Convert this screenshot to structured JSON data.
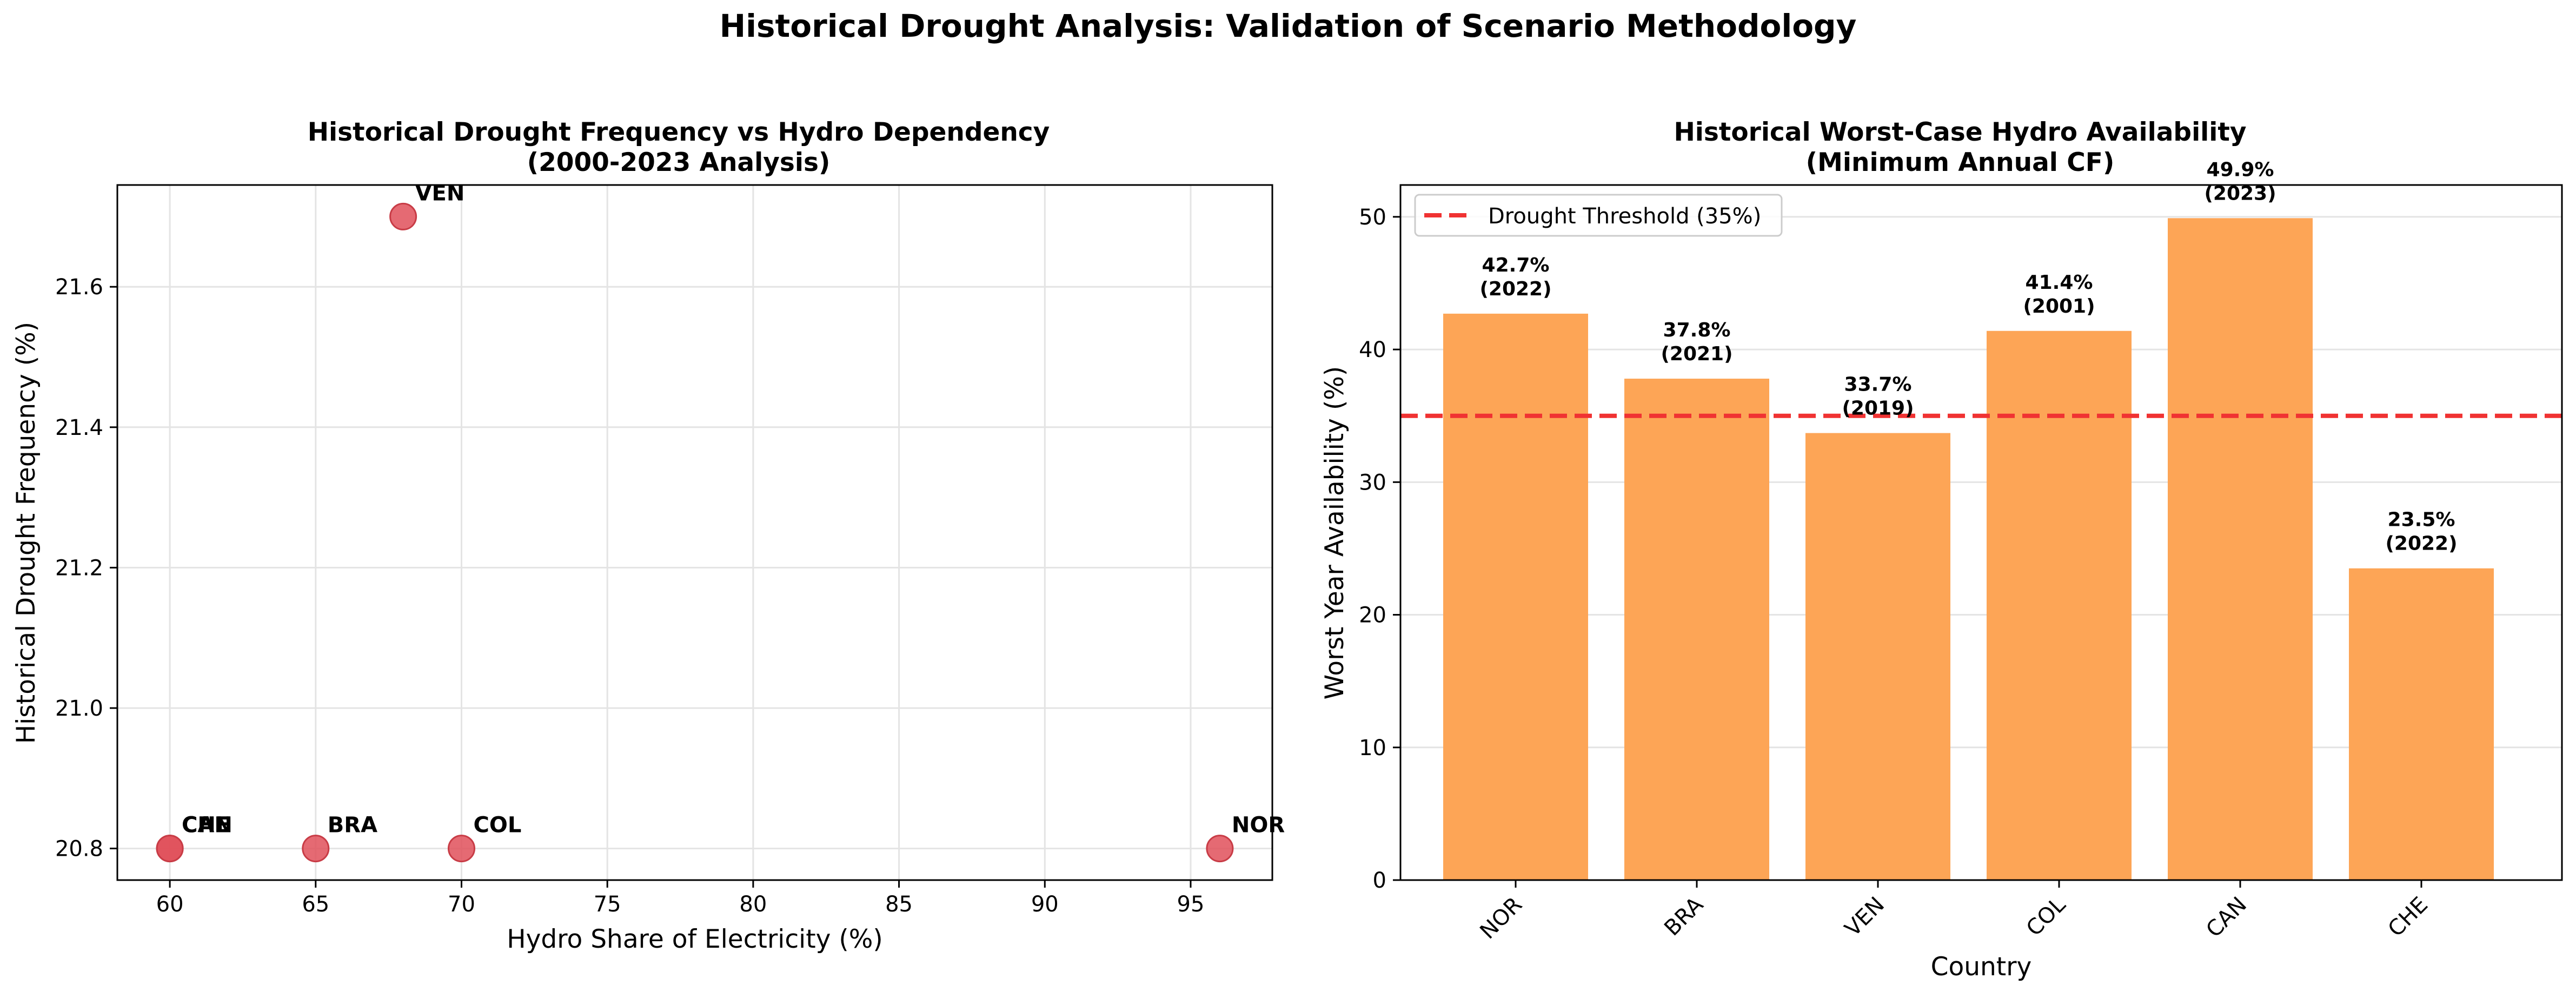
{
  "suptitle": "Historical Drought Analysis: Validation of Scenario Methodology",
  "colors": {
    "scatter_fill": "#e0505a",
    "scatter_edge": "#c83c46",
    "bar_fill": "#fda556",
    "threshold_line": "#f03232",
    "grid": "#e4e4e4"
  },
  "chart_data": [
    {
      "type": "scatter",
      "title_line1": "Historical Drought Frequency vs Hydro Dependency",
      "title_line2": "(2000-2023 Analysis)",
      "xlabel": "Hydro Share of Electricity (%)",
      "ylabel": "Historical Drought Frequency (%)",
      "xlim": [
        58.2,
        97.8
      ],
      "ylim": [
        20.755,
        21.745
      ],
      "xticks": [
        60,
        65,
        70,
        75,
        80,
        85,
        90,
        95
      ],
      "yticks": [
        20.8,
        21.0,
        21.2,
        21.4,
        21.6
      ],
      "grid": true,
      "points": [
        {
          "label": "NOR",
          "x": 96,
          "y": 20.8
        },
        {
          "label": "BRA",
          "x": 65,
          "y": 20.8
        },
        {
          "label": "VEN",
          "x": 68,
          "y": 21.7
        },
        {
          "label": "COL",
          "x": 70,
          "y": 20.8
        },
        {
          "label": "CAN",
          "x": 60,
          "y": 20.8
        },
        {
          "label": "CHE",
          "x": 60,
          "y": 20.8
        }
      ]
    },
    {
      "type": "bar",
      "title_line1": "Historical Worst-Case Hydro Availability",
      "title_line2": "(Minimum Annual CF)",
      "xlabel": "Country",
      "ylabel": "Worst Year Availability (%)",
      "ylim": [
        0,
        52.4
      ],
      "yticks": [
        0,
        10,
        20,
        30,
        40,
        50
      ],
      "grid": true,
      "categories": [
        "NOR",
        "BRA",
        "VEN",
        "COL",
        "CAN",
        "CHE"
      ],
      "values": [
        42.7,
        37.8,
        33.7,
        41.4,
        49.9,
        23.5
      ],
      "value_labels": [
        "42.7%",
        "37.8%",
        "33.7%",
        "41.4%",
        "49.9%",
        "23.5%"
      ],
      "year_labels": [
        "(2022)",
        "(2021)",
        "(2019)",
        "(2001)",
        "(2023)",
        "(2022)"
      ],
      "threshold": {
        "value": 35,
        "label": "Drought Threshold (35%)"
      },
      "legend_position": "top-left"
    }
  ]
}
